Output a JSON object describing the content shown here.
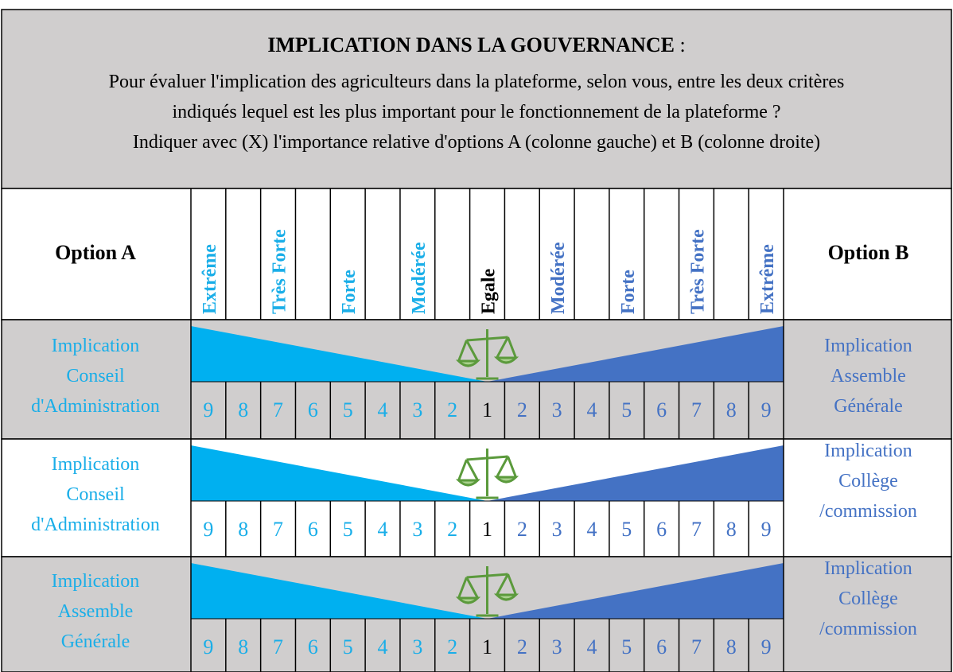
{
  "header": {
    "title": "IMPLICATION DANS LA GOUVERNANCE",
    "title_suffix": " :",
    "lines": [
      "Pour évaluer l'implication des agriculteurs dans la plateforme, selon vous, entre les deux critères",
      "indiqués lequel est les plus important pour le fonctionnement de la plateforme ?",
      "Indiquer avec (X) l'importance relative d'options A (colonne gauche) et B (colonne droite)"
    ]
  },
  "columns": {
    "option_a": "Option A",
    "option_b": "Option B",
    "scale_labels": [
      "Extrême",
      null,
      "Très Forte",
      null,
      "Forte",
      null,
      "Modérée",
      null,
      "Egale",
      null,
      "Modérée",
      null,
      "Forte",
      null,
      "Très Forte",
      null,
      "Extrême"
    ]
  },
  "rows": [
    {
      "option_a": [
        "Implication",
        "Conseil",
        "d'Administration"
      ],
      "option_b": [
        "Implication",
        "Assemble",
        "Générale"
      ],
      "scale": [
        9,
        8,
        7,
        6,
        5,
        4,
        3,
        2,
        1,
        2,
        3,
        4,
        5,
        6,
        7,
        8,
        9
      ]
    },
    {
      "option_a": [
        "Implication",
        "Conseil",
        "d'Administration"
      ],
      "option_b": [
        "Implication",
        "Collège",
        "/commission"
      ],
      "scale": [
        9,
        8,
        7,
        6,
        5,
        4,
        3,
        2,
        1,
        2,
        3,
        4,
        5,
        6,
        7,
        8,
        9
      ]
    },
    {
      "option_a": [
        "Implication",
        "Assemble",
        "Générale"
      ],
      "option_b": [
        "Implication",
        "Collège",
        "/commission"
      ],
      "scale": [
        9,
        8,
        7,
        6,
        5,
        4,
        3,
        2,
        1,
        2,
        3,
        4,
        5,
        6,
        7,
        8,
        9
      ]
    }
  ]
}
